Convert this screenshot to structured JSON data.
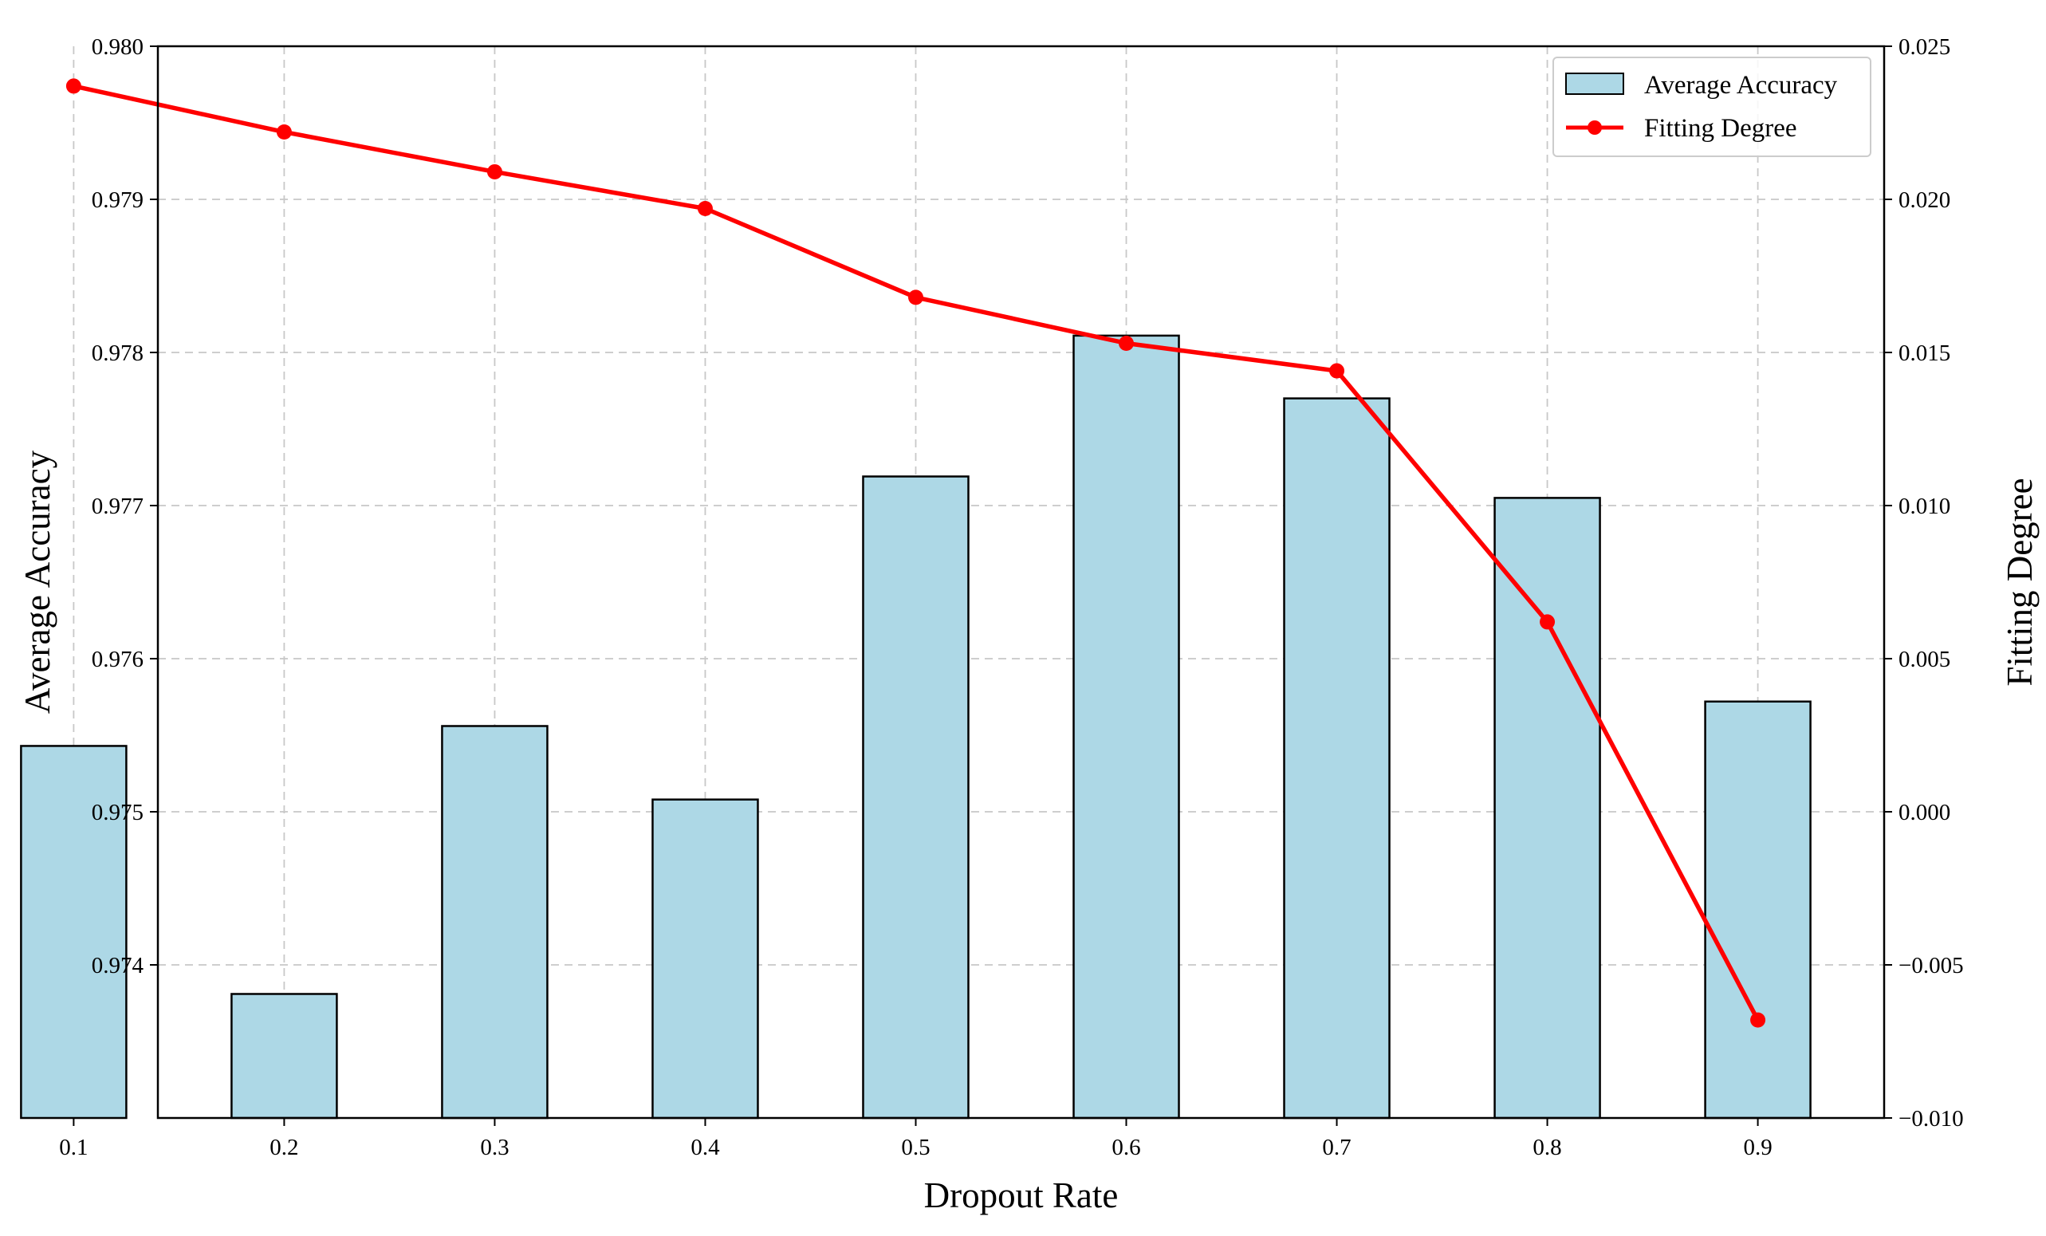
{
  "chart_data": {
    "type": "bar+line",
    "title": "",
    "xlabel": "Dropout Rate",
    "categories": [
      "0.1",
      "0.2",
      "0.3",
      "0.4",
      "0.5",
      "0.6",
      "0.7",
      "0.8",
      "0.9"
    ],
    "series": [
      {
        "name": "Average Accuracy",
        "type": "bar",
        "axis": "left",
        "color": "#add8e6",
        "edge_color": "#000000",
        "values": [
          0.97543,
          0.97381,
          0.97556,
          0.97508,
          0.97719,
          0.97811,
          0.9777,
          0.97705,
          0.97572
        ]
      },
      {
        "name": "Fitting Degree",
        "type": "line",
        "axis": "right",
        "color": "#ff0000",
        "marker": "circle",
        "values": [
          0.0237,
          0.0222,
          0.0209,
          0.0197,
          0.0168,
          0.0153,
          0.0144,
          0.0062,
          -0.0068
        ]
      }
    ],
    "y_left": {
      "label": "Average Accuracy",
      "ylim": [
        0.973,
        0.98
      ],
      "ticks": [
        "0.974",
        "0.975",
        "0.976",
        "0.977",
        "0.978",
        "0.979",
        "0.980"
      ],
      "tick_values": [
        0.974,
        0.975,
        0.976,
        0.977,
        0.978,
        0.979,
        0.98
      ]
    },
    "y_right": {
      "label": "Fitting Degree",
      "ylim": [
        -0.01,
        0.025
      ],
      "ticks": [
        "−0.010",
        "−0.005",
        "0.000",
        "0.005",
        "0.010",
        "0.015",
        "0.020",
        "0.025"
      ],
      "tick_values": [
        -0.01,
        -0.005,
        0.0,
        0.005,
        0.01,
        0.015,
        0.02,
        0.025
      ]
    },
    "grid": true,
    "grid_style": "dashed",
    "legend": {
      "placement": "top-right",
      "entries": [
        "Average Accuracy",
        "Fitting Degree"
      ]
    }
  }
}
